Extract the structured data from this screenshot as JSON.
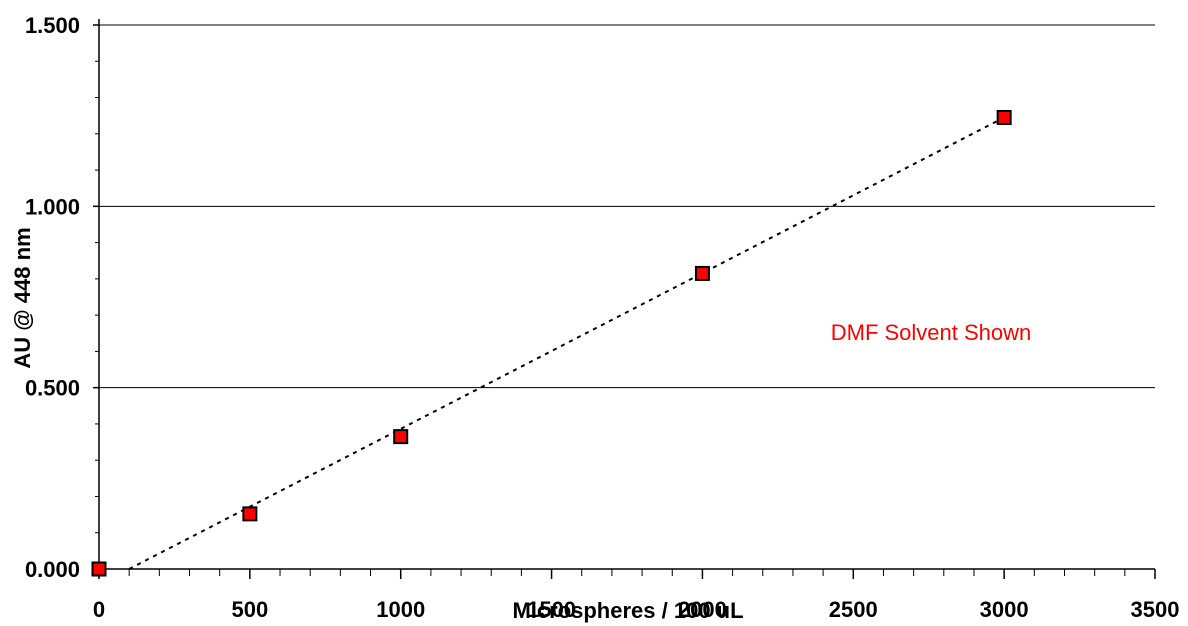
{
  "chart_data": {
    "type": "scatter",
    "xlabel": "Microspheres / 100 uL",
    "ylabel": "AU @ 448 nm",
    "xlim": [
      0,
      3500
    ],
    "ylim": [
      0,
      1.5
    ],
    "x_ticks": [
      "0",
      "500",
      "1000",
      "1500",
      "2000",
      "2500",
      "3000",
      "3500"
    ],
    "y_ticks": [
      "0.000",
      "0.500",
      "1.000",
      "1.500"
    ],
    "grid": "horizontal",
    "series": [
      {
        "points": [
          {
            "x": 0,
            "y": 0.0
          },
          {
            "x": 500,
            "y": 0.152
          },
          {
            "x": 1000,
            "y": 0.365
          },
          {
            "x": 2000,
            "y": 0.815
          },
          {
            "x": 3000,
            "y": 1.245
          }
        ],
        "marker": "square",
        "color": "#ff0000"
      }
    ],
    "trendline": {
      "style": "dotted",
      "color": "#000000",
      "from": [
        100,
        0.0
      ],
      "to": [
        3000,
        1.245
      ]
    },
    "annotations": [
      {
        "text": "DMF Solvent Shown",
        "color": "#ff0000"
      }
    ]
  }
}
